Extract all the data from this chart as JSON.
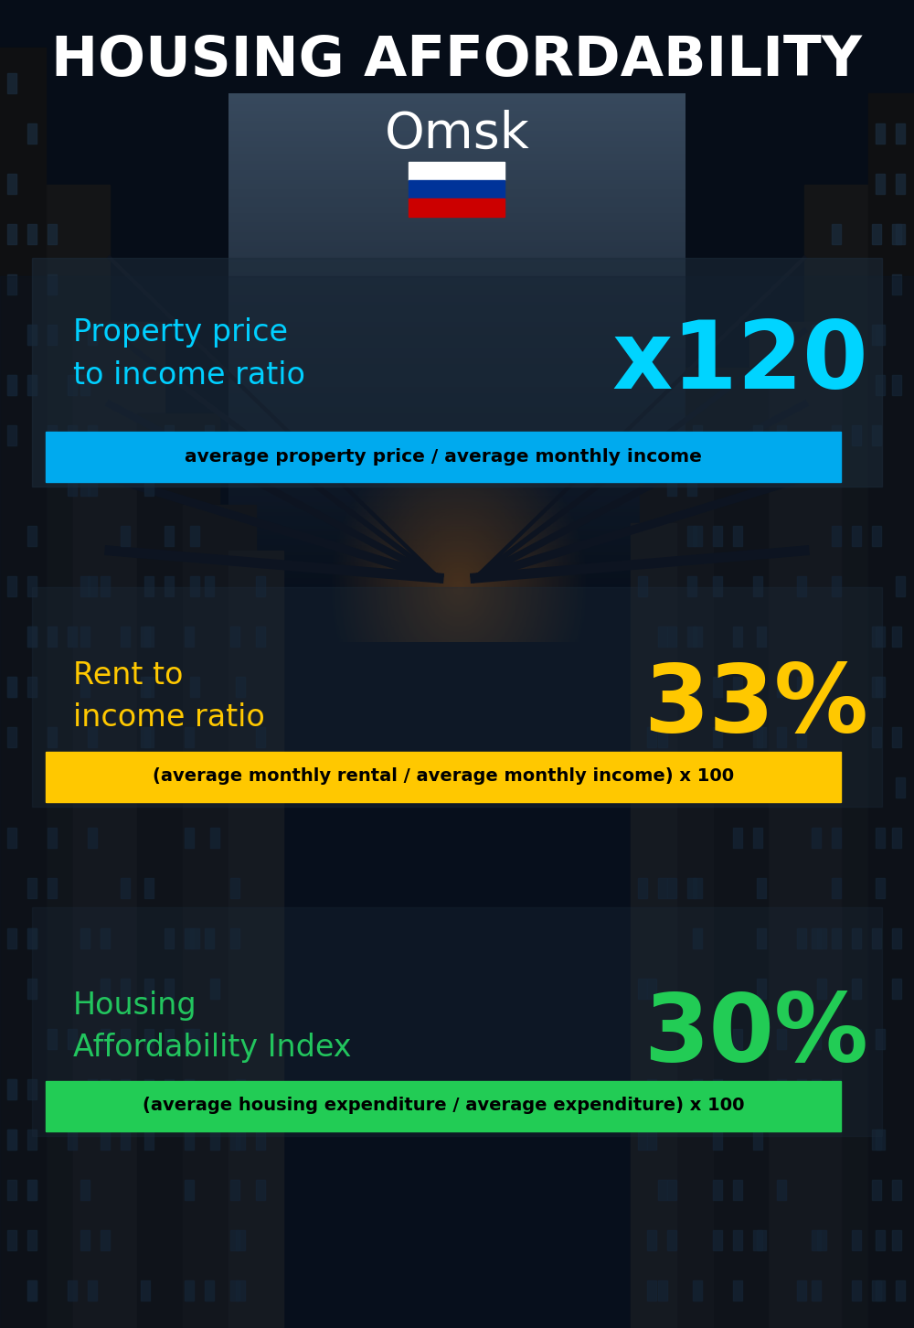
{
  "title_line1": "HOUSING AFFORDABILITY",
  "title_line2": "Omsk",
  "bg_color": "#060d18",
  "title1_color": "#ffffff",
  "title2_color": "#ffffff",
  "section1_label": "Property price\nto income ratio",
  "section1_value": "x120",
  "section1_label_color": "#00cfff",
  "section1_value_color": "#00d4ff",
  "section1_banner_text": "average property price / average monthly income",
  "section1_banner_bg": "#00aaee",
  "section1_banner_text_color": "#000000",
  "section2_label": "Rent to\nincome ratio",
  "section2_value": "33%",
  "section2_label_color": "#ffc800",
  "section2_value_color": "#ffc800",
  "section2_banner_text": "(average monthly rental / average monthly income) x 100",
  "section2_banner_bg": "#ffc800",
  "section2_banner_text_color": "#000000",
  "section3_label": "Housing\nAffordability Index",
  "section3_value": "30%",
  "section3_label_color": "#22c55e",
  "section3_value_color": "#22cc55",
  "section3_banner_text": "(average housing expenditure / average expenditure) x 100",
  "section3_banner_bg": "#22cc55",
  "section3_banner_text_color": "#000000",
  "flag_colors": [
    "#ffffff",
    "#003399",
    "#cc0000"
  ],
  "fig_width": 10.0,
  "fig_height": 14.52
}
